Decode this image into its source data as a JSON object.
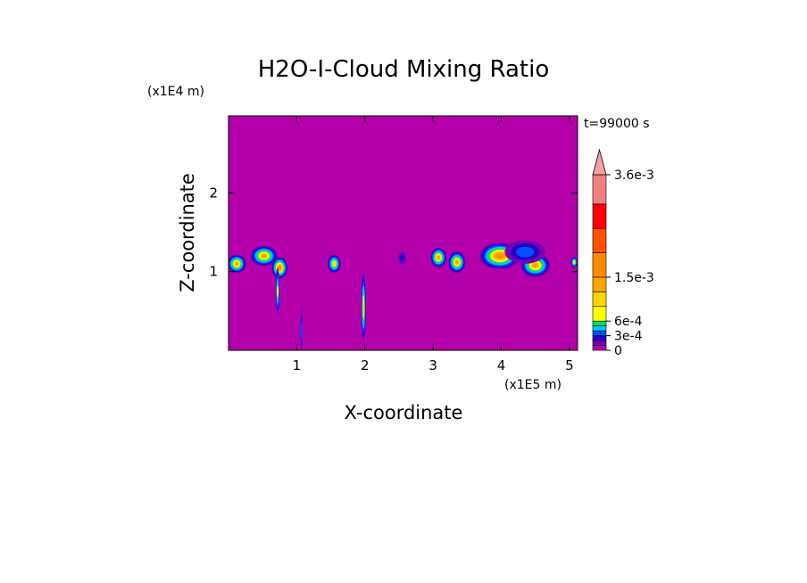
{
  "chart_data": {
    "type": "heatmap",
    "title": "H2O-I-Cloud Mixing Ratio",
    "xlabel": "X-coordinate",
    "ylabel": "Z-coordinate",
    "x_scale_label": "(x1E5 m)",
    "y_scale_label": "(x1E4 m)",
    "time_label": "t=99000 s",
    "xlim": [
      0,
      5.12
    ],
    "ylim": [
      0,
      2.98
    ],
    "x_ticks": [
      1,
      2,
      3,
      4,
      5
    ],
    "y_ticks": [
      1,
      2
    ],
    "x_tick_labels": [
      "1",
      "2",
      "3",
      "4",
      "5"
    ],
    "y_tick_labels": [
      "1",
      "2"
    ],
    "colorbar": {
      "levels": [
        0,
        0.0001,
        0.0002,
        0.0003,
        0.0004,
        0.0005,
        0.0006,
        0.0009,
        0.0012,
        0.0015,
        0.002,
        0.0025,
        0.003,
        0.0036
      ],
      "labels": [
        "0",
        "3e-4",
        "6e-4",
        "1.5e-3",
        "3.6e-3"
      ],
      "label_values": [
        0,
        0.0003,
        0.0006,
        0.0015,
        0.0036
      ],
      "colors": [
        "#b400aa",
        "#7800b4",
        "#2800c8",
        "#0050ff",
        "#00c8ff",
        "#00dc64",
        "#ffff00",
        "#ffd700",
        "#ffa500",
        "#ff8c00",
        "#ff5000",
        "#ff0000",
        "#f08080",
        "#f4a0a0"
      ],
      "extend": "max"
    },
    "background_value": 0,
    "cloud_features": [
      {
        "x": 0.12,
        "z": 1.1,
        "rx": 0.14,
        "rz": 0.12,
        "peak": 0.0012
      },
      {
        "x": 0.52,
        "z": 1.2,
        "rx": 0.2,
        "rz": 0.13,
        "peak": 0.0012
      },
      {
        "x": 0.75,
        "z": 1.05,
        "rx": 0.12,
        "rz": 0.14,
        "peak": 0.0015
      },
      {
        "x": 0.72,
        "z": 0.75,
        "rx": 0.03,
        "rz": 0.3,
        "peak": 0.0006
      },
      {
        "x": 1.07,
        "z": 0.25,
        "rx": 0.015,
        "rz": 0.3,
        "peak": 0.0003
      },
      {
        "x": 1.55,
        "z": 1.1,
        "rx": 0.1,
        "rz": 0.12,
        "peak": 0.0009
      },
      {
        "x": 1.98,
        "z": 0.55,
        "rx": 0.035,
        "rz": 0.45,
        "peak": 0.0009
      },
      {
        "x": 2.55,
        "z": 1.17,
        "rx": 0.06,
        "rz": 0.08,
        "peak": 0.0002
      },
      {
        "x": 3.08,
        "z": 1.18,
        "rx": 0.12,
        "rz": 0.13,
        "peak": 0.0012
      },
      {
        "x": 3.35,
        "z": 1.12,
        "rx": 0.13,
        "rz": 0.14,
        "peak": 0.0012
      },
      {
        "x": 3.98,
        "z": 1.2,
        "rx": 0.3,
        "rz": 0.17,
        "peak": 0.0015
      },
      {
        "x": 4.5,
        "z": 1.08,
        "rx": 0.22,
        "rz": 0.15,
        "peak": 0.0012
      },
      {
        "x": 4.35,
        "z": 1.25,
        "rx": 0.3,
        "rz": 0.15,
        "peak": 0.0003
      },
      {
        "x": 5.07,
        "z": 1.12,
        "rx": 0.05,
        "rz": 0.07,
        "peak": 0.0009
      }
    ]
  }
}
